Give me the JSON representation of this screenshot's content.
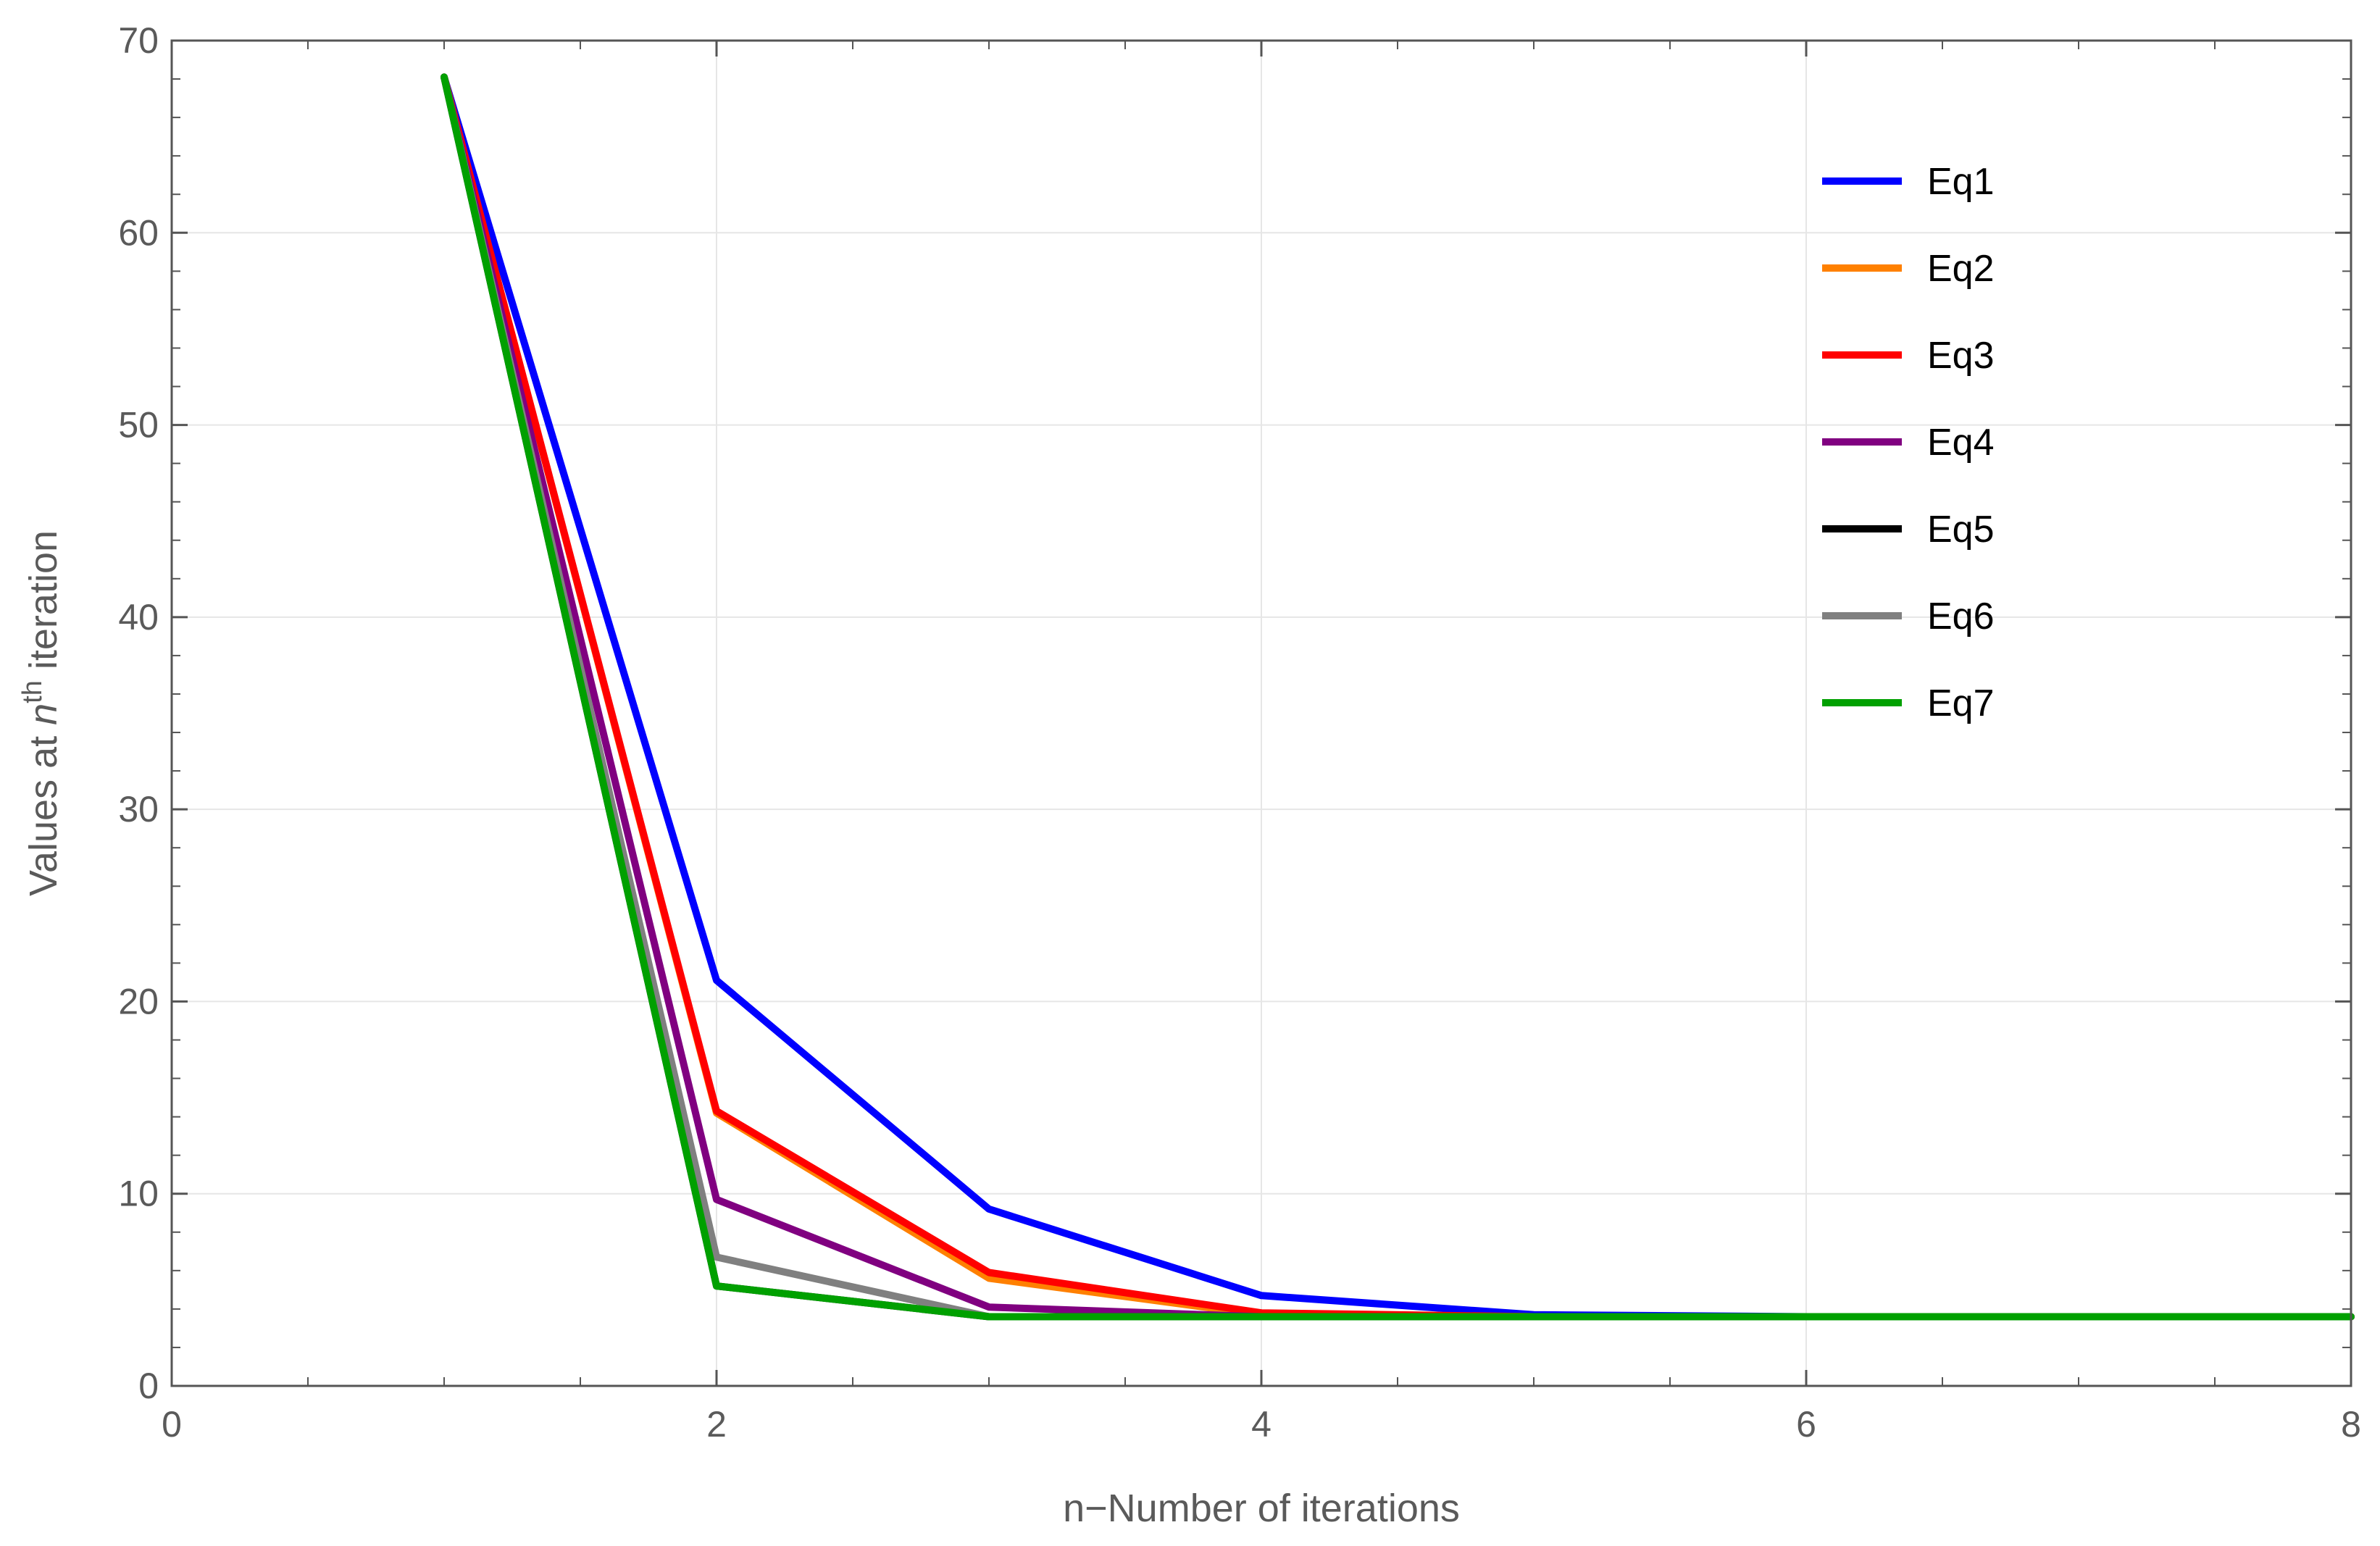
{
  "chart_data": {
    "type": "line",
    "title": "",
    "xlabel": "n−Number of iterations",
    "ylabel": {
      "prefix": "Values at ",
      "var": "n",
      "sup": "th",
      "suffix": " iteration"
    },
    "xlim": [
      0,
      8
    ],
    "ylim": [
      0,
      70
    ],
    "xticks": [
      "0",
      "2",
      "4",
      "6",
      "8"
    ],
    "yticks": [
      "0",
      "10",
      "20",
      "30",
      "40",
      "50",
      "60",
      "70"
    ],
    "grid": true,
    "legend_position": "top-right",
    "series": [
      {
        "name": "Eq1",
        "color": "#0000ff",
        "x": [
          1,
          2,
          3,
          4,
          5,
          6,
          7,
          8
        ],
        "y": [
          68.1,
          21.1,
          9.2,
          4.7,
          3.7,
          3.6,
          3.6,
          3.6
        ]
      },
      {
        "name": "Eq2",
        "color": "#ff8000",
        "x": [
          1,
          2,
          3,
          4,
          5,
          6,
          7,
          8
        ],
        "y": [
          68.1,
          14.2,
          5.6,
          3.7,
          3.6,
          3.6,
          3.6,
          3.6
        ]
      },
      {
        "name": "Eq3",
        "color": "#ff0000",
        "x": [
          1,
          2,
          3,
          4,
          5,
          6,
          7,
          8
        ],
        "y": [
          68.1,
          14.3,
          5.9,
          3.8,
          3.6,
          3.6,
          3.6,
          3.6
        ]
      },
      {
        "name": "Eq4",
        "color": "#800080",
        "x": [
          1,
          2,
          3,
          4,
          5,
          6,
          7,
          8
        ],
        "y": [
          68.1,
          9.7,
          4.1,
          3.6,
          3.6,
          3.6,
          3.6,
          3.6
        ]
      },
      {
        "name": "Eq5",
        "color": "#000000",
        "x": [
          1,
          2,
          3,
          4,
          5,
          6,
          7,
          8
        ],
        "y": [
          68.1,
          5.2,
          3.6,
          3.6,
          3.6,
          3.6,
          3.6,
          3.6
        ]
      },
      {
        "name": "Eq6",
        "color": "#808080",
        "x": [
          1,
          2,
          3,
          4,
          5,
          6,
          7,
          8
        ],
        "y": [
          68.1,
          6.7,
          3.6,
          3.6,
          3.6,
          3.6,
          3.6,
          3.6
        ]
      },
      {
        "name": "Eq7",
        "color": "#00a000",
        "x": [
          1,
          2,
          3,
          4,
          5,
          6,
          7,
          8
        ],
        "y": [
          68.1,
          5.2,
          3.6,
          3.6,
          3.6,
          3.6,
          3.6,
          3.6
        ]
      }
    ]
  }
}
